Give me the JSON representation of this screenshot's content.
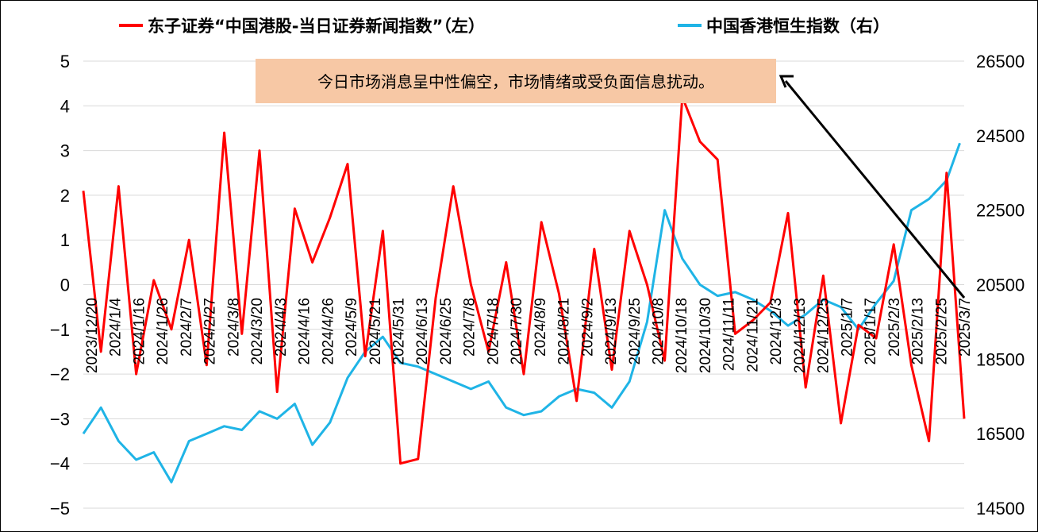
{
  "legend": {
    "left_series": "东子证券“中国港股-当日证券新闻指数”（左）",
    "right_series": "中国香港恒生指数（右）"
  },
  "annotation": {
    "text": "今日市场消息呈中性偏空，市场情绪或受负面信息扰动。"
  },
  "colors": {
    "left_series": "#ff0000",
    "right_series": "#1fb4e6",
    "annotation_bg": "#f7c8a5",
    "gridline": "#d9d9d9"
  },
  "chart_data": {
    "type": "line",
    "legend_position": "top",
    "grid": true,
    "y_left": {
      "ylim": [
        -5,
        5
      ],
      "ticks": [
        "5",
        "4",
        "3",
        "2",
        "1",
        "0",
        "−1",
        "−2",
        "−3",
        "−4",
        "−5"
      ]
    },
    "y_right": {
      "ylim": [
        14500,
        26500
      ],
      "ticks": [
        "26500",
        "24500",
        "22500",
        "20500",
        "18500",
        "16500",
        "14500"
      ]
    },
    "x_ticks": [
      "2023/12/20",
      "2024/1/4",
      "2024/1/16",
      "2024/1/26",
      "2024/2/7",
      "2024/2/27",
      "2024/3/8",
      "2024/3/20",
      "2024/4/3",
      "2024/4/16",
      "2024/4/26",
      "2024/5/9",
      "2024/5/21",
      "2024/5/31",
      "2024/6/13",
      "2024/6/25",
      "2024/7/8",
      "2024/7/18",
      "2024/7/30",
      "2024/8/9",
      "2024/8/21",
      "2024/9/2",
      "2024/9/13",
      "2024/9/25",
      "2024/10/8",
      "2024/10/18",
      "2024/10/30",
      "2024/11/11",
      "2024/11/21",
      "2024/12/3",
      "2024/12/13",
      "2024/12/25",
      "2025/1/7",
      "2025/1/17",
      "2025/2/3",
      "2025/2/13",
      "2025/2/25",
      "2025/3/7"
    ],
    "series": [
      {
        "name": "东子证券“中国港股-当日证券新闻指数”（左）",
        "axis": "left",
        "x": [
          0,
          0.02,
          0.04,
          0.06,
          0.08,
          0.1,
          0.12,
          0.14,
          0.16,
          0.18,
          0.2,
          0.22,
          0.24,
          0.26,
          0.28,
          0.3,
          0.32,
          0.34,
          0.36,
          0.38,
          0.4,
          0.42,
          0.44,
          0.46,
          0.48,
          0.5,
          0.52,
          0.54,
          0.56,
          0.58,
          0.6,
          0.62,
          0.64,
          0.66,
          0.68,
          0.7,
          0.72,
          0.74,
          0.76,
          0.78,
          0.8,
          0.82,
          0.84,
          0.86,
          0.88,
          0.9,
          0.92,
          0.94,
          0.96,
          0.98,
          1
        ],
        "values": [
          2.1,
          -1.5,
          2.2,
          -2.0,
          0.1,
          -1.0,
          1.0,
          -1.8,
          3.4,
          -1.1,
          3.0,
          -2.4,
          1.7,
          0.5,
          1.5,
          2.7,
          -1.6,
          1.2,
          -4.0,
          -3.9,
          -0.3,
          2.2,
          0.0,
          -1.5,
          0.5,
          -2.0,
          1.4,
          -0.2,
          -2.6,
          0.8,
          -1.9,
          1.2,
          0.0,
          -1.7,
          4.2,
          3.2,
          2.8,
          -1.1,
          -0.8,
          -0.4,
          1.6,
          -2.3,
          0.2,
          -3.1,
          -0.9,
          -1.2,
          0.9,
          -1.8,
          -3.5,
          2.5,
          -3.0
        ]
      },
      {
        "name": "中国香港恒生指数（右）",
        "axis": "right",
        "x": [
          0,
          0.02,
          0.04,
          0.06,
          0.08,
          0.1,
          0.12,
          0.14,
          0.16,
          0.18,
          0.2,
          0.22,
          0.24,
          0.26,
          0.28,
          0.3,
          0.32,
          0.34,
          0.36,
          0.38,
          0.4,
          0.42,
          0.44,
          0.46,
          0.48,
          0.5,
          0.52,
          0.54,
          0.56,
          0.58,
          0.6,
          0.62,
          0.64,
          0.66,
          0.68,
          0.7,
          0.72,
          0.74,
          0.76,
          0.78,
          0.8,
          0.82,
          0.84,
          0.86,
          0.88,
          0.9,
          0.92,
          0.94,
          0.96,
          0.98,
          0.995
        ],
        "values": [
          16500,
          17200,
          16300,
          15800,
          16000,
          15200,
          16300,
          16500,
          16700,
          16600,
          17100,
          16900,
          17300,
          16200,
          16800,
          18000,
          18700,
          19100,
          18400,
          18300,
          18100,
          17900,
          17700,
          17900,
          17200,
          17000,
          17100,
          17500,
          17700,
          17600,
          17200,
          17900,
          19500,
          22500,
          21200,
          20500,
          20200,
          20300,
          20100,
          19800,
          19400,
          19700,
          20100,
          19900,
          19300,
          20000,
          20600,
          22500,
          22800,
          23300,
          24300
        ]
      }
    ]
  }
}
